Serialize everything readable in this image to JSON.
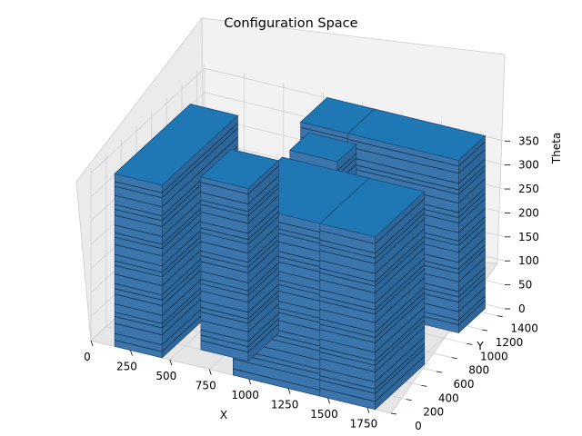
{
  "chart_data": {
    "type": "voxel-3d",
    "title": "Configuration Space",
    "xlabel": "X",
    "ylabel": "Y",
    "zlabel": "Theta",
    "xlim": [
      0,
      1900
    ],
    "ylim": [
      0,
      1500
    ],
    "zlim": [
      0,
      360
    ],
    "x_ticks": [
      "0",
      "250",
      "500",
      "750",
      "1000",
      "1250",
      "1500",
      "1750"
    ],
    "y_ticks": [
      "0",
      "200",
      "400",
      "600",
      "800",
      "1000",
      "1200",
      "1400"
    ],
    "z_ticks": [
      "0",
      "50",
      "100",
      "150",
      "200",
      "250",
      "300",
      "350"
    ],
    "grid": true,
    "color": "#1f77b4",
    "obstacles": [
      {
        "x": [
          150,
          450
        ],
        "y": [
          0,
          1000
        ],
        "theta": [
          0,
          360
        ]
      },
      {
        "x": [
          600,
          900
        ],
        "y": [
          200,
          600
        ],
        "theta": [
          0,
          360
        ]
      },
      {
        "x": [
          900,
          1450
        ],
        "y": [
          0,
          650
        ],
        "theta": [
          0,
          360
        ]
      },
      {
        "x": [
          1450,
          1800
        ],
        "y": [
          0,
          650
        ],
        "theta": [
          0,
          360
        ]
      },
      {
        "x": [
          800,
          1100
        ],
        "y": [
          1100,
          1450
        ],
        "theta": [
          0,
          360
        ]
      },
      {
        "x": [
          1100,
          1800
        ],
        "y": [
          1100,
          1450
        ],
        "theta": [
          0,
          360
        ]
      },
      {
        "x": [
          900,
          1200
        ],
        "y": [
          750,
          1000
        ],
        "theta": [
          0,
          360
        ]
      }
    ]
  }
}
